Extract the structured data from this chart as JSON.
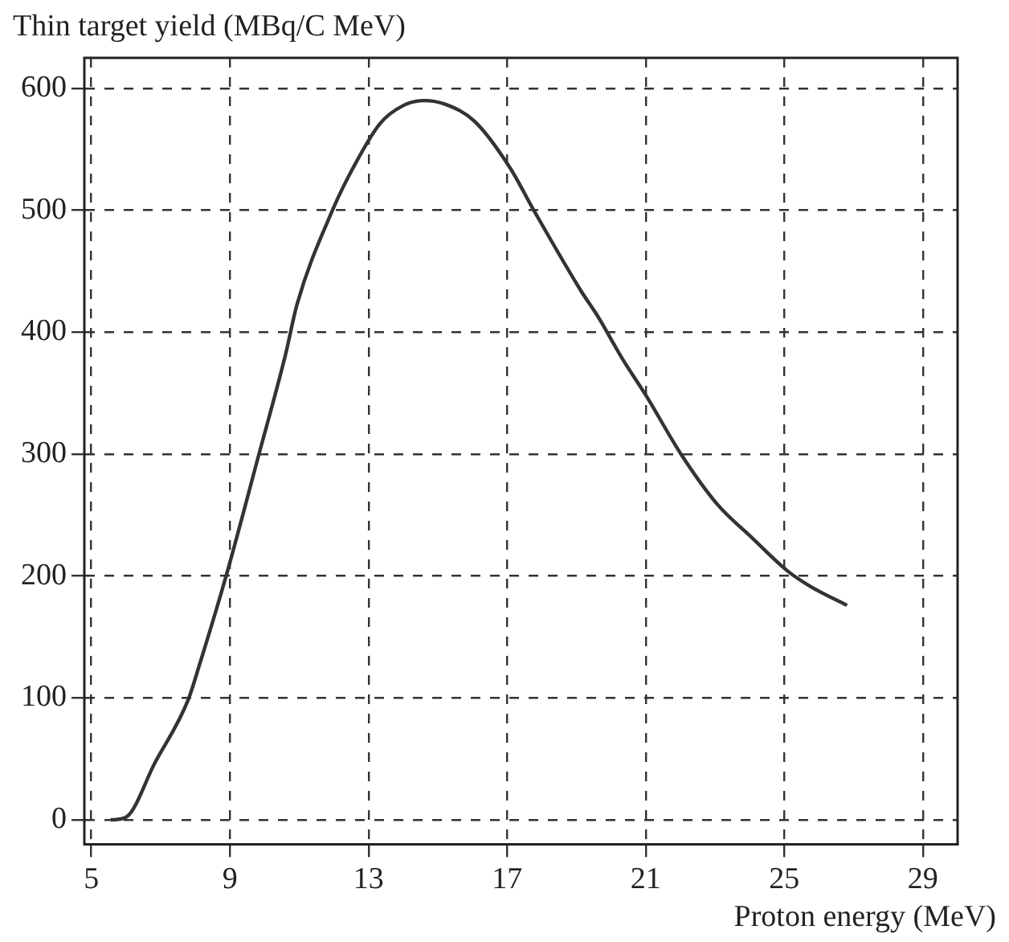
{
  "chart_data": {
    "type": "line",
    "ylabel": "Thin target yield (MBq/C MeV)",
    "xlabel": "Proton energy (MeV)",
    "xlim": [
      4.8,
      30
    ],
    "xticks": [
      5,
      9,
      13,
      17,
      21,
      25,
      29
    ],
    "ylim": [
      -20,
      625
    ],
    "yticks": [
      0,
      100,
      200,
      300,
      400,
      500,
      600
    ],
    "grid": true,
    "legend": false,
    "marker": "none",
    "line_style": "solid",
    "series": [
      {
        "color": "#333333",
        "x": [
          5.56,
          5.99,
          6.84,
          7.79,
          8.12,
          8.89,
          9.83,
          10.6,
          10.94,
          11.96,
          12.56,
          13.33,
          14.01,
          14.61,
          15.21,
          16.06,
          17.08,
          17.77,
          19.13,
          19.64,
          20.33,
          21.01,
          22.04,
          23.06,
          24.08,
          25.1,
          25.78,
          26.81
        ],
        "values": [
          0,
          2,
          47,
          98,
          127,
          200,
          299,
          381,
          423,
          500,
          535,
          571,
          586,
          590,
          587,
          573,
          535,
          500,
          434,
          412,
          378,
          348,
          299,
          259,
          231,
          204,
          191,
          176
        ]
      }
    ]
  }
}
